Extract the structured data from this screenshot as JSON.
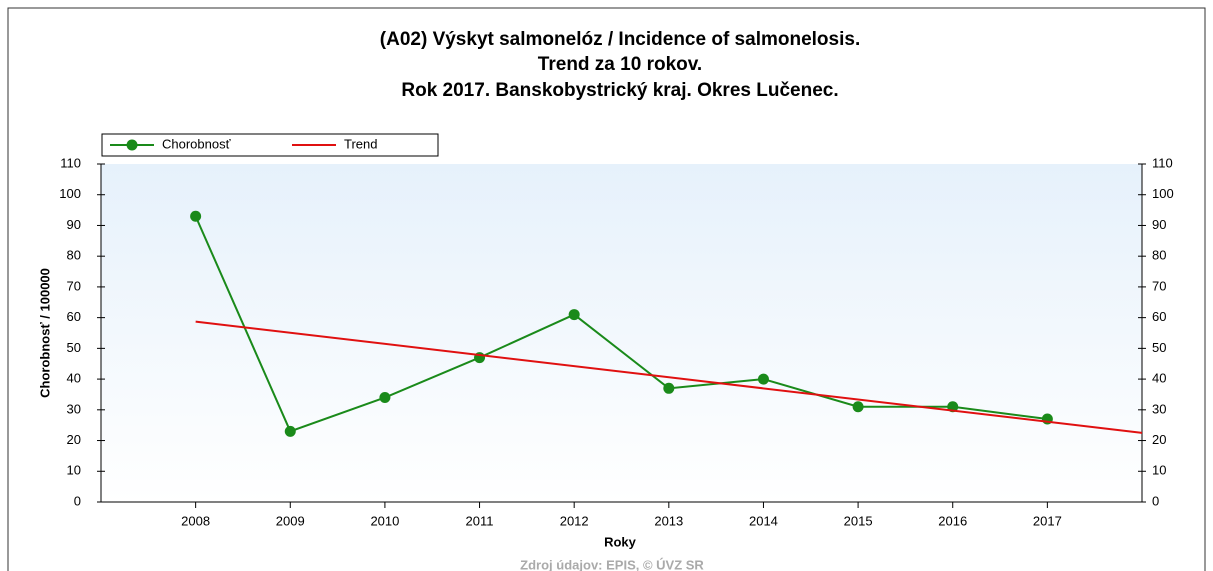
{
  "chart_data": {
    "type": "line",
    "title": [
      "(A02) Výskyt salmonelóz / Incidence of salmonelosis.",
      "Trend za 10 rokov.",
      "Rok 2017. Banskobystrický kraj. Okres Lučenec."
    ],
    "xlabel": "Roky",
    "ylabel": "Chorobnosť / 100000",
    "source": "Zdroj údajov: EPIS, © ÚVZ SR",
    "xlim": [
      2007,
      2018
    ],
    "xticks": [
      2008,
      2009,
      2010,
      2011,
      2012,
      2013,
      2014,
      2015,
      2016,
      2017
    ],
    "ylim": [
      0,
      110
    ],
    "yticks": [
      0,
      10,
      20,
      30,
      40,
      50,
      60,
      70,
      80,
      90,
      100,
      110
    ],
    "series": [
      {
        "name": "Chorobnosť",
        "color": "#1a8a1a",
        "markers": true,
        "x": [
          2008,
          2009,
          2010,
          2011,
          2012,
          2013,
          2014,
          2015,
          2016,
          2017
        ],
        "values": [
          93,
          23,
          34,
          47,
          61,
          37,
          40,
          31,
          31,
          27
        ]
      },
      {
        "name": "Trend",
        "color": "#e01010",
        "markers": false,
        "x": [
          2008,
          2018
        ],
        "values": [
          58.7,
          22.5
        ]
      }
    ]
  }
}
